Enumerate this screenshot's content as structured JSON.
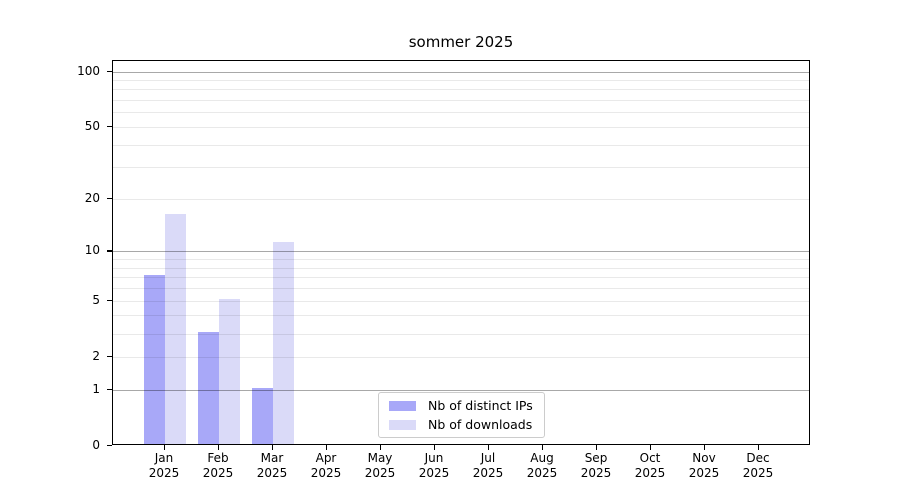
{
  "chart_data": {
    "type": "bar",
    "title": "sommer 2025",
    "x": {
      "months": [
        "Jan",
        "Feb",
        "Mar",
        "Apr",
        "May",
        "Jun",
        "Jul",
        "Aug",
        "Sep",
        "Oct",
        "Nov",
        "Dec"
      ],
      "year_label": "2025"
    },
    "series": [
      {
        "name": "Nb of distinct IPs",
        "color": "#a8a8f8",
        "values": [
          7,
          3,
          1,
          0,
          0,
          0,
          0,
          0,
          0,
          0,
          0,
          0
        ]
      },
      {
        "name": "Nb of downloads",
        "color": "#dadaf8",
        "values": [
          16,
          5,
          11,
          0,
          0,
          0,
          0,
          0,
          0,
          0,
          0,
          0
        ]
      }
    ],
    "yaxis": {
      "scale": "log1p",
      "ylim": [
        0,
        113
      ],
      "ticks": [
        0,
        1,
        2,
        5,
        10,
        20,
        50,
        100
      ],
      "major_gridlines": [
        1,
        10,
        100
      ],
      "minor_gridlines": [
        2,
        3,
        4,
        5,
        6,
        7,
        8,
        9,
        20,
        30,
        40,
        50,
        60,
        70,
        80,
        90
      ]
    },
    "legend_position": "lower center"
  }
}
